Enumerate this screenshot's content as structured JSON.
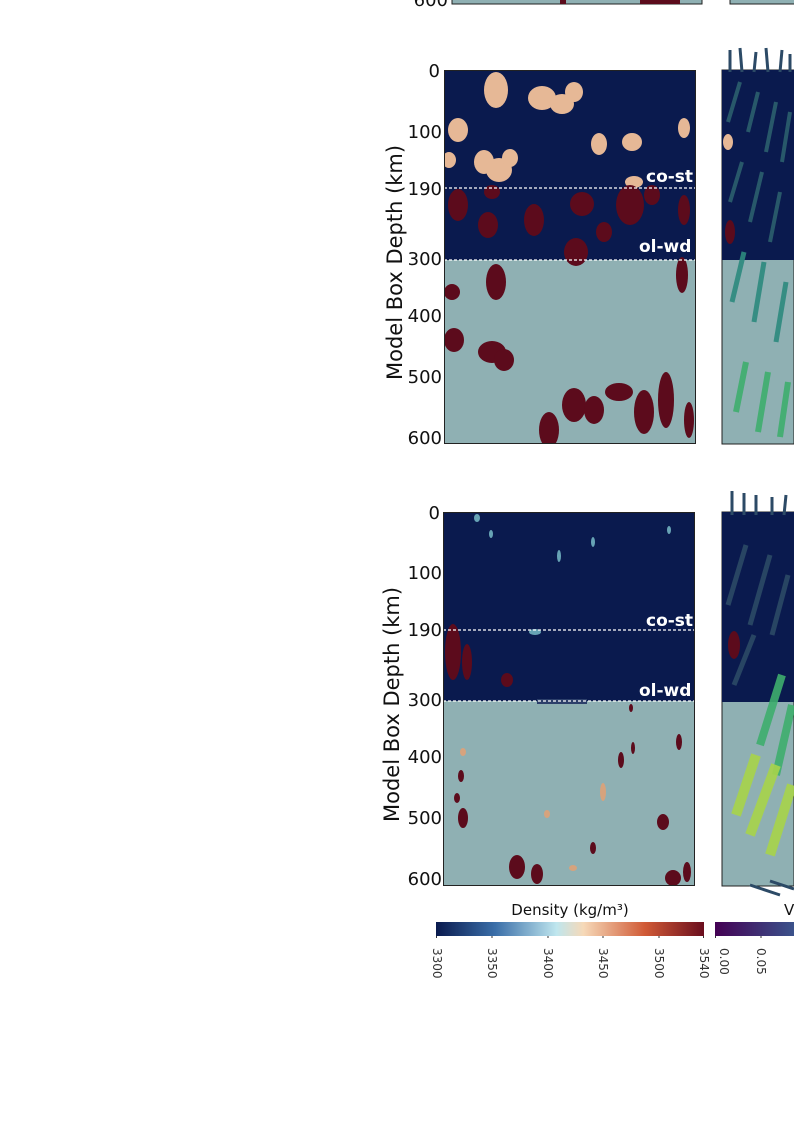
{
  "top_fragment": {
    "tick": "600"
  },
  "panels": [
    {
      "ylabel": "Model Box Depth (km)",
      "ticks": [
        "0",
        "100",
        "190",
        "300",
        "400",
        "500",
        "600"
      ],
      "boundaries": [
        "co-st",
        "ol-wd"
      ]
    },
    {
      "ylabel": "Model Box Depth (km)",
      "ticks": [
        "0",
        "100",
        "190",
        "300",
        "400",
        "500",
        "600"
      ],
      "boundaries": [
        "co-st",
        "ol-wd"
      ]
    }
  ],
  "colorbars": {
    "density": {
      "title": "Density (kg/m³)",
      "ticks": [
        "3300",
        "3350",
        "3400",
        "3450",
        "3500",
        "3540"
      ],
      "colors": [
        "#0a1a4e",
        "#3a6ea8",
        "#bfe6ee",
        "#f6d9b8",
        "#d05a36",
        "#6a0e1e"
      ]
    },
    "velocity": {
      "title": "V",
      "ticks": [
        "0.00",
        "0.05"
      ],
      "colors": [
        "#440154",
        "#3b528b"
      ]
    }
  },
  "colors": {
    "upper_mantle": "#0a1a4e",
    "lower_mantle": "#8fb0b3",
    "light_blob": "#e6b896",
    "dense_blob": "#5c0b1c",
    "arrow_dark": "#2c4a66",
    "arrow_green": "#3fae6e",
    "arrow_yellow": "#a8d44a"
  }
}
